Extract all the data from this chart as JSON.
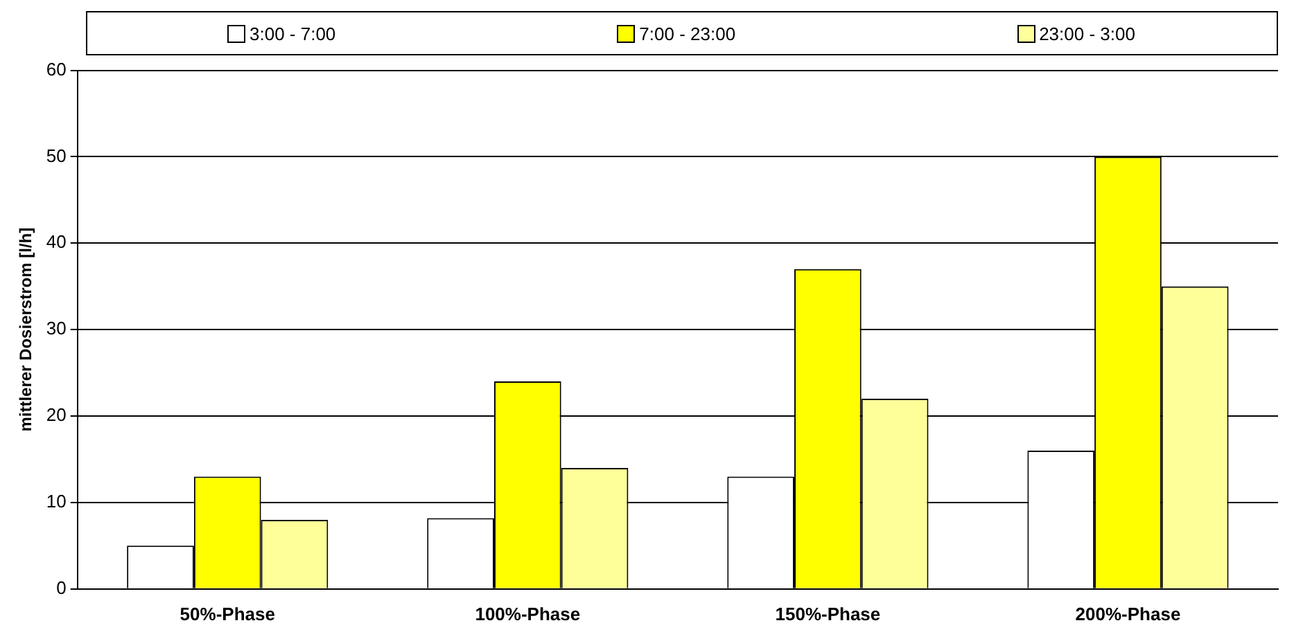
{
  "chart_data": {
    "type": "bar",
    "ylabel": "mittlerer Dosierstrom [l/h]",
    "categories": [
      "50%-Phase",
      "100%-Phase",
      "150%-Phase",
      "200%-Phase"
    ],
    "series": [
      {
        "name": "3:00 - 7:00",
        "color": "#ffffff",
        "values": [
          5,
          8.2,
          13,
          16
        ]
      },
      {
        "name": "7:00 - 23:00",
        "color": "#ffff00",
        "values": [
          13,
          24,
          37,
          50
        ]
      },
      {
        "name": "23:00 - 3:00",
        "color": "#ffff99",
        "values": [
          8,
          14,
          22,
          35
        ]
      }
    ],
    "ylim": [
      0,
      60
    ],
    "yticks": [
      0,
      10,
      20,
      30,
      40,
      50,
      60
    ],
    "grid": "y",
    "legend": "top"
  }
}
